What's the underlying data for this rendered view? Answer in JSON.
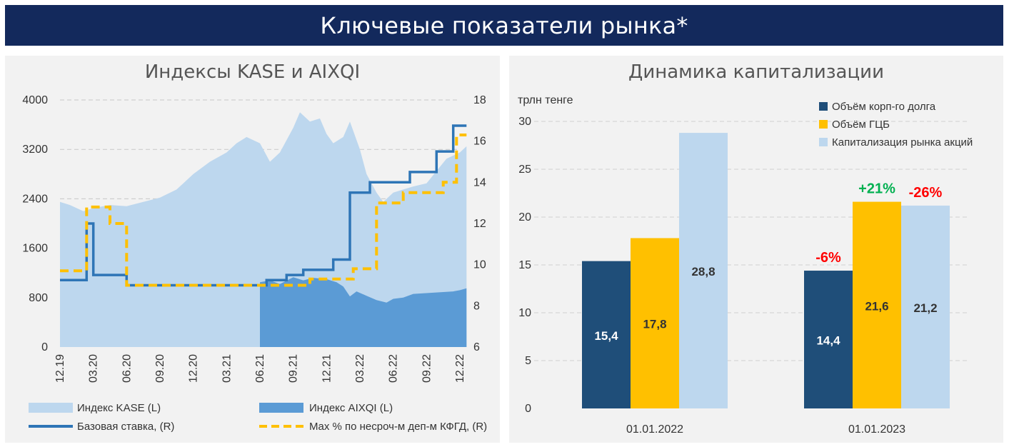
{
  "header": {
    "title": "Ключевые показатели рынка*"
  },
  "left_panel": {
    "title": "Индексы KASE и AIXQI"
  },
  "right_panel": {
    "title": "Динамика капитализации",
    "unit_label": "трлн тенге"
  },
  "colors": {
    "banner": "#13295c",
    "kase": "#bdd7ee",
    "aixqi": "#5b9bd5",
    "base_rate": "#2e75b6",
    "max_deposit": "#ffc000",
    "corp_debt": "#1f4e79",
    "gcb": "#ffc000",
    "equity_cap": "#bdd7ee",
    "growth": "#00b050",
    "decline": "#ff0000"
  },
  "chart_data": [
    {
      "type": "area",
      "title": "Индексы KASE и AIXQI",
      "x_tick_labels": [
        "12.19",
        "03.20",
        "06.20",
        "09.20",
        "12.20",
        "03.21",
        "06.21",
        "09.21",
        "12.21",
        "03.22",
        "06.22",
        "09.22",
        "12.22"
      ],
      "y_left_ticks": [
        "0",
        "800",
        "1600",
        "2400",
        "3200",
        "4000"
      ],
      "y_left_range": [
        0,
        4000
      ],
      "y_right_ticks": [
        "6",
        "8",
        "10",
        "12",
        "14",
        "16",
        "18"
      ],
      "y_right_range": [
        6,
        18
      ],
      "grid": true,
      "legend_position": "bottom",
      "series": [
        {
          "name": "Индекс KASE (L)",
          "axis": "left",
          "kind": "area",
          "x": [
            0,
            0.3,
            0.7,
            1,
            1.5,
            2,
            2.5,
            3,
            3.5,
            4,
            4.5,
            5,
            5.3,
            5.6,
            6,
            6.3,
            6.6,
            7,
            7.2,
            7.5,
            7.8,
            8,
            8.2,
            8.5,
            8.7,
            9,
            9.2,
            9.5,
            9.7,
            10,
            10.3,
            10.6,
            11,
            11.3,
            11.6,
            12,
            12.2
          ],
          "y": [
            2350,
            2300,
            2200,
            2250,
            2300,
            2280,
            2350,
            2420,
            2550,
            2800,
            3000,
            3150,
            3300,
            3400,
            3300,
            3000,
            3150,
            3550,
            3800,
            3650,
            3700,
            3450,
            3300,
            3400,
            3650,
            3200,
            2800,
            2500,
            2350,
            2500,
            2550,
            2600,
            2650,
            2850,
            3050,
            3150,
            3250
          ]
        },
        {
          "name": "Индекс AIXQI (L)",
          "axis": "left",
          "kind": "area",
          "x": [
            6,
            6.3,
            6.6,
            7,
            7.3,
            7.6,
            8,
            8.3,
            8.5,
            8.7,
            8.9,
            9.2,
            9.5,
            9.8,
            10,
            10.3,
            10.6,
            10.9,
            11.2,
            11.5,
            11.8,
            12,
            12.2
          ],
          "y": [
            1050,
            1080,
            1020,
            1130,
            1080,
            1120,
            1100,
            1050,
            980,
            820,
            900,
            830,
            760,
            720,
            780,
            800,
            860,
            870,
            880,
            890,
            900,
            920,
            950
          ]
        },
        {
          "name": "Базовая ставка, (R)",
          "axis": "right",
          "kind": "step",
          "x": [
            0,
            0.8,
            0.8,
            1,
            1,
            2,
            2,
            6.2,
            6.2,
            6.8,
            6.8,
            7.3,
            7.3,
            8.2,
            8.2,
            8.7,
            8.7,
            9.3,
            9.3,
            10.5,
            10.5,
            11.3,
            11.3,
            11.8,
            11.8,
            12.2
          ],
          "y": [
            9.25,
            9.25,
            12,
            12,
            9.5,
            9.5,
            9,
            9,
            9.25,
            9.25,
            9.5,
            9.5,
            9.75,
            9.75,
            10.25,
            10.25,
            13.5,
            13.5,
            14,
            14,
            14.5,
            14.5,
            15.5,
            15.5,
            16.75,
            16.75
          ]
        },
        {
          "name": "Max % по несроч-м деп-м КФГД, (R)",
          "axis": "right",
          "kind": "step-dashed",
          "x": [
            0,
            0.8,
            0.8,
            1.5,
            1.5,
            2,
            2,
            7.5,
            7.5,
            8.8,
            8.8,
            9.5,
            9.5,
            10.3,
            10.3,
            11.5,
            11.5,
            11.9,
            11.9,
            12.2
          ],
          "y": [
            9.7,
            9.7,
            12.8,
            12.8,
            12,
            12,
            9,
            9,
            9.3,
            9.3,
            9.8,
            9.8,
            13,
            13,
            13.5,
            13.5,
            14,
            14,
            16.3,
            16.3
          ]
        }
      ]
    },
    {
      "type": "bar",
      "title": "Динамика капитализации",
      "ylabel": "трлн тенге",
      "categories": [
        "01.01.2022",
        "01.01.2023"
      ],
      "ylim": [
        0,
        30
      ],
      "y_ticks": [
        "0",
        "5",
        "10",
        "15",
        "20",
        "25",
        "30"
      ],
      "grid": true,
      "legend_position": "top-right",
      "series": [
        {
          "name": "Объём корп-го долга",
          "values": [
            15.4,
            14.4
          ],
          "labels": [
            "15,4",
            "14,4"
          ]
        },
        {
          "name": "Объём ГЦБ",
          "values": [
            17.8,
            21.6
          ],
          "labels": [
            "17,8",
            "21,6"
          ]
        },
        {
          "name": "Капитализация рынка акций",
          "values": [
            28.8,
            21.2
          ],
          "labels": [
            "28,8",
            "21,2"
          ]
        }
      ],
      "annotations": [
        {
          "text": "-6%",
          "category": 1,
          "series": 0,
          "tone": "decline"
        },
        {
          "text": "+21%",
          "category": 1,
          "series": 1,
          "tone": "growth"
        },
        {
          "text": "-26%",
          "category": 1,
          "series": 2,
          "tone": "decline"
        }
      ]
    }
  ]
}
